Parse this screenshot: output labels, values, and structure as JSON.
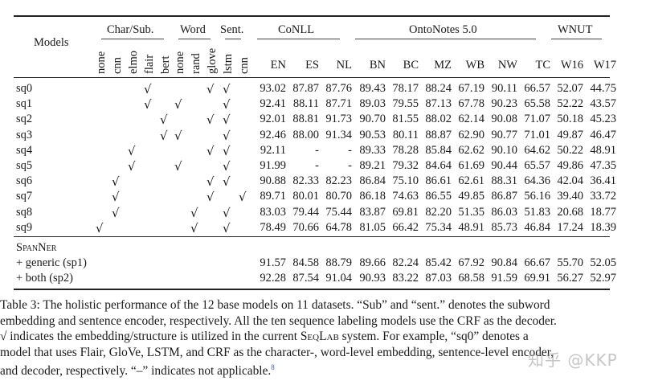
{
  "table": {
    "models_header": "Models",
    "groups": {
      "char_sub": "Char/Sub.",
      "word": "Word",
      "sent": "Sent.",
      "conll": "CoNLL",
      "ontonotes": "OntoNotes 5.0",
      "wnut": "WNUT"
    },
    "component_columns": [
      "none",
      "cnn",
      "elmo",
      "flair",
      "bert",
      "none",
      "rand",
      "glove",
      "lstm",
      "cnn"
    ],
    "dataset_columns": [
      "EN",
      "ES",
      "NL",
      "BN",
      "BC",
      "MZ",
      "WB",
      "NW",
      "TC",
      "W16",
      "W17"
    ],
    "check_glyph": "√",
    "rows": [
      {
        "model": "sq0",
        "checks": [
          3,
          7,
          8
        ],
        "values": [
          "93.02",
          "87.87",
          "87.76",
          "89.43",
          "78.17",
          "88.24",
          "67.19",
          "90.11",
          "66.57",
          "52.07",
          "44.75"
        ]
      },
      {
        "model": "sq1",
        "checks": [
          3,
          5,
          8
        ],
        "values": [
          "92.41",
          "88.11",
          "87.71",
          "89.03",
          "79.55",
          "87.13",
          "67.78",
          "90.23",
          "65.58",
          "52.22",
          "43.57"
        ]
      },
      {
        "model": "sq2",
        "checks": [
          4,
          7,
          8
        ],
        "values": [
          "92.01",
          "88.81",
          "91.73",
          "90.70",
          "81.55",
          "88.02",
          "62.14",
          "90.08",
          "71.07",
          "50.18",
          "45.23"
        ]
      },
      {
        "model": "sq3",
        "checks": [
          4,
          5,
          8
        ],
        "values": [
          "92.46",
          "88.00",
          "91.34",
          "90.53",
          "80.11",
          "88.87",
          "62.90",
          "90.77",
          "71.01",
          "49.87",
          "46.47"
        ]
      },
      {
        "model": "sq4",
        "checks": [
          2,
          7,
          8
        ],
        "values": [
          "92.11",
          "-",
          "-",
          "89.33",
          "78.28",
          "85.84",
          "62.62",
          "90.10",
          "64.62",
          "50.22",
          "48.91"
        ]
      },
      {
        "model": "sq5",
        "checks": [
          2,
          5,
          8
        ],
        "values": [
          "91.99",
          "-",
          "-",
          "89.21",
          "79.32",
          "84.64",
          "61.69",
          "90.44",
          "65.57",
          "49.86",
          "47.35"
        ]
      },
      {
        "model": "sq6",
        "checks": [
          1,
          7,
          8
        ],
        "values": [
          "90.88",
          "82.33",
          "82.23",
          "86.84",
          "75.10",
          "86.61",
          "62.61",
          "88.31",
          "64.36",
          "42.04",
          "36.41"
        ]
      },
      {
        "model": "sq7",
        "checks": [
          1,
          7,
          9
        ],
        "values": [
          "89.71",
          "80.01",
          "80.70",
          "86.18",
          "74.63",
          "86.55",
          "49.85",
          "86.87",
          "56.16",
          "39.40",
          "33.72"
        ]
      },
      {
        "model": "sq8",
        "checks": [
          1,
          6,
          8
        ],
        "values": [
          "83.03",
          "79.44",
          "75.44",
          "83.87",
          "69.81",
          "82.20",
          "51.35",
          "86.03",
          "51.83",
          "20.68",
          "18.77"
        ]
      },
      {
        "model": "sq9",
        "checks": [
          0,
          6,
          8
        ],
        "values": [
          "78.49",
          "70.66",
          "64.78",
          "81.05",
          "66.42",
          "75.34",
          "48.91",
          "85.73",
          "46.84",
          "17.24",
          "18.39"
        ]
      }
    ],
    "spanner_header": "SpanNer",
    "spanner_rows": [
      {
        "model": "+ generic (sp1)",
        "values": [
          "91.57",
          "84.58",
          "88.79",
          "89.66",
          "82.24",
          "85.42",
          "67.92",
          "90.84",
          "66.67",
          "55.70",
          "52.05"
        ]
      },
      {
        "model": "+ both (sp2)",
        "values": [
          "92.28",
          "87.54",
          "91.04",
          "90.93",
          "83.22",
          "87.03",
          "68.58",
          "91.59",
          "69.91",
          "56.27",
          "52.97"
        ]
      }
    ]
  },
  "caption": {
    "line1": "Table 3: The holistic performance of the 12 base models on 11 datasets. “Sub” and “sent.” denotes the subword",
    "line2": "embedding and sentence encoder, respectively. All the ten sequence labeling models use the CRF as the decoder.",
    "line3_pre": "√ indicates the embedding/structure is utilized in the current ",
    "line3_sys": "SeqLab",
    "line3_post": " system. For example, “sq0” denotes a",
    "line4": "model that uses Flair, GloVe, LSTM, and CRF as the character-, word-level embedding, sentence-level encoder,",
    "line5": "and decoder, respectively. “–” indicates not applicable.",
    "footnote_mark": "8"
  },
  "watermark": "知乎 @KKP"
}
